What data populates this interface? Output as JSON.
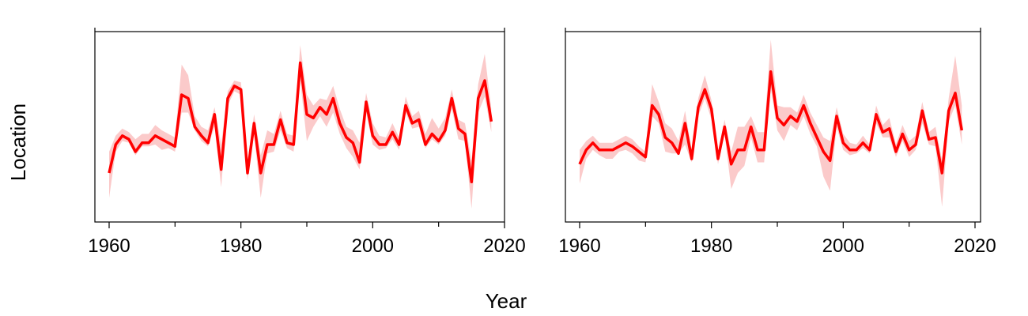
{
  "chart_data": {
    "type": "line",
    "xlabel": "Year",
    "ylabel": "Location",
    "xlim": [
      1960,
      2020
    ],
    "ylim": [
      0,
      10
    ],
    "x_ticks": [
      1960,
      1980,
      2000,
      2020
    ],
    "x_tick_labels": [
      "1960",
      "1980",
      "2000",
      "2020"
    ],
    "y_tick_labels_shown": false,
    "colors": {
      "line": "#ff0000",
      "band": "#fbcaca"
    },
    "x": [
      1960,
      1961,
      1962,
      1963,
      1964,
      1965,
      1966,
      1967,
      1968,
      1969,
      1970,
      1971,
      1972,
      1973,
      1974,
      1975,
      1976,
      1977,
      1978,
      1979,
      1980,
      1981,
      1982,
      1983,
      1984,
      1985,
      1986,
      1987,
      1988,
      1989,
      1990,
      1991,
      1992,
      1993,
      1994,
      1995,
      1996,
      1997,
      1998,
      1999,
      2000,
      2001,
      2002,
      2003,
      2004,
      2005,
      2006,
      2007,
      2008,
      2009,
      2010,
      2011,
      2012,
      2013,
      2014,
      2015,
      2016,
      2017,
      2018
    ],
    "panels": [
      {
        "name": "",
        "values": [
          2.4,
          4.0,
          4.5,
          4.3,
          3.6,
          4.1,
          4.1,
          4.5,
          4.3,
          4.1,
          3.9,
          6.8,
          6.6,
          5.0,
          4.5,
          4.1,
          5.7,
          2.6,
          6.6,
          7.3,
          7.1,
          2.4,
          5.2,
          2.4,
          4.0,
          4.0,
          5.4,
          4.1,
          4.0,
          8.6,
          5.7,
          5.5,
          6.1,
          5.7,
          6.6,
          5.2,
          4.4,
          4.1,
          3.0,
          6.4,
          4.5,
          4.0,
          4.0,
          4.7,
          4.0,
          6.2,
          5.2,
          5.4,
          4.0,
          4.6,
          4.2,
          4.8,
          6.6,
          4.9,
          4.6,
          1.9,
          6.6,
          7.6,
          5.3
        ],
        "lower": [
          1.0,
          3.6,
          4.2,
          4.1,
          3.4,
          3.9,
          3.9,
          4.0,
          3.7,
          3.8,
          3.6,
          5.8,
          5.8,
          4.8,
          4.2,
          3.9,
          5.0,
          1.6,
          6.2,
          7.0,
          6.8,
          2.0,
          4.6,
          1.0,
          3.5,
          3.6,
          4.8,
          3.8,
          3.6,
          7.6,
          4.2,
          5.0,
          5.6,
          5.0,
          5.8,
          4.6,
          3.8,
          3.3,
          2.6,
          5.8,
          4.0,
          3.7,
          3.8,
          4.3,
          3.7,
          5.8,
          4.9,
          5.0,
          3.8,
          4.3,
          4.0,
          4.5,
          6.0,
          4.3,
          4.2,
          0.4,
          5.8,
          6.7,
          4.7
        ],
        "upper": [
          3.6,
          4.5,
          4.9,
          4.7,
          4.3,
          4.6,
          4.6,
          5.1,
          4.8,
          4.6,
          4.4,
          8.5,
          7.9,
          5.6,
          5.0,
          4.8,
          6.1,
          4.0,
          7.0,
          7.6,
          7.5,
          3.0,
          5.7,
          3.4,
          4.8,
          4.6,
          5.9,
          4.6,
          4.5,
          9.6,
          6.8,
          6.2,
          6.6,
          6.5,
          7.3,
          6.0,
          5.0,
          4.8,
          4.1,
          6.9,
          5.2,
          4.5,
          4.4,
          5.2,
          4.4,
          6.7,
          5.6,
          5.9,
          4.6,
          5.5,
          4.9,
          5.5,
          7.1,
          5.4,
          5.2,
          3.1,
          7.4,
          9.1,
          6.0
        ]
      },
      {
        "name": "",
        "values": [
          2.9,
          3.7,
          4.1,
          3.7,
          3.7,
          3.7,
          3.9,
          4.1,
          3.9,
          3.6,
          3.3,
          6.2,
          5.7,
          4.4,
          4.1,
          3.5,
          5.2,
          3.2,
          6.1,
          7.1,
          6.0,
          3.2,
          5.0,
          2.9,
          3.7,
          3.7,
          5.0,
          3.7,
          3.7,
          8.1,
          5.5,
          5.1,
          5.6,
          5.3,
          6.2,
          5.2,
          4.4,
          3.6,
          3.1,
          5.6,
          4.1,
          3.7,
          3.7,
          4.1,
          3.7,
          5.7,
          4.7,
          4.9,
          3.6,
          4.6,
          3.7,
          4.0,
          5.9,
          4.3,
          4.4,
          2.4,
          5.9,
          6.9,
          4.8
        ],
        "lower": [
          1.8,
          3.2,
          3.7,
          3.4,
          3.2,
          3.2,
          3.6,
          3.7,
          3.5,
          3.1,
          3.0,
          5.6,
          5.2,
          3.6,
          3.5,
          3.5,
          4.0,
          3.0,
          5.6,
          6.6,
          5.4,
          2.9,
          4.6,
          1.5,
          2.4,
          2.8,
          4.4,
          3.0,
          3.0,
          7.2,
          4.8,
          4.2,
          5.1,
          4.8,
          5.6,
          4.6,
          3.9,
          2.2,
          1.4,
          5.0,
          3.7,
          3.4,
          3.5,
          3.8,
          3.5,
          5.2,
          4.4,
          4.4,
          3.3,
          4.2,
          3.3,
          3.7,
          5.2,
          4.0,
          3.9,
          0.5,
          5.3,
          6.2,
          4.0
        ],
        "upper": [
          3.7,
          4.2,
          4.5,
          4.1,
          4.1,
          4.1,
          4.3,
          4.5,
          4.3,
          3.9,
          3.6,
          7.4,
          6.4,
          5.2,
          4.9,
          4.2,
          5.9,
          3.7,
          6.6,
          7.9,
          6.5,
          3.6,
          5.4,
          3.6,
          5.0,
          5.0,
          5.6,
          4.7,
          4.7,
          9.9,
          6.2,
          6.1,
          6.1,
          5.8,
          6.8,
          5.8,
          5.1,
          4.4,
          4.2,
          6.1,
          4.6,
          4.1,
          4.0,
          4.5,
          4.0,
          6.2,
          5.1,
          5.5,
          4.0,
          5.1,
          4.2,
          4.5,
          6.4,
          4.7,
          5.0,
          3.1,
          6.6,
          9.0,
          6.2
        ]
      }
    ]
  }
}
